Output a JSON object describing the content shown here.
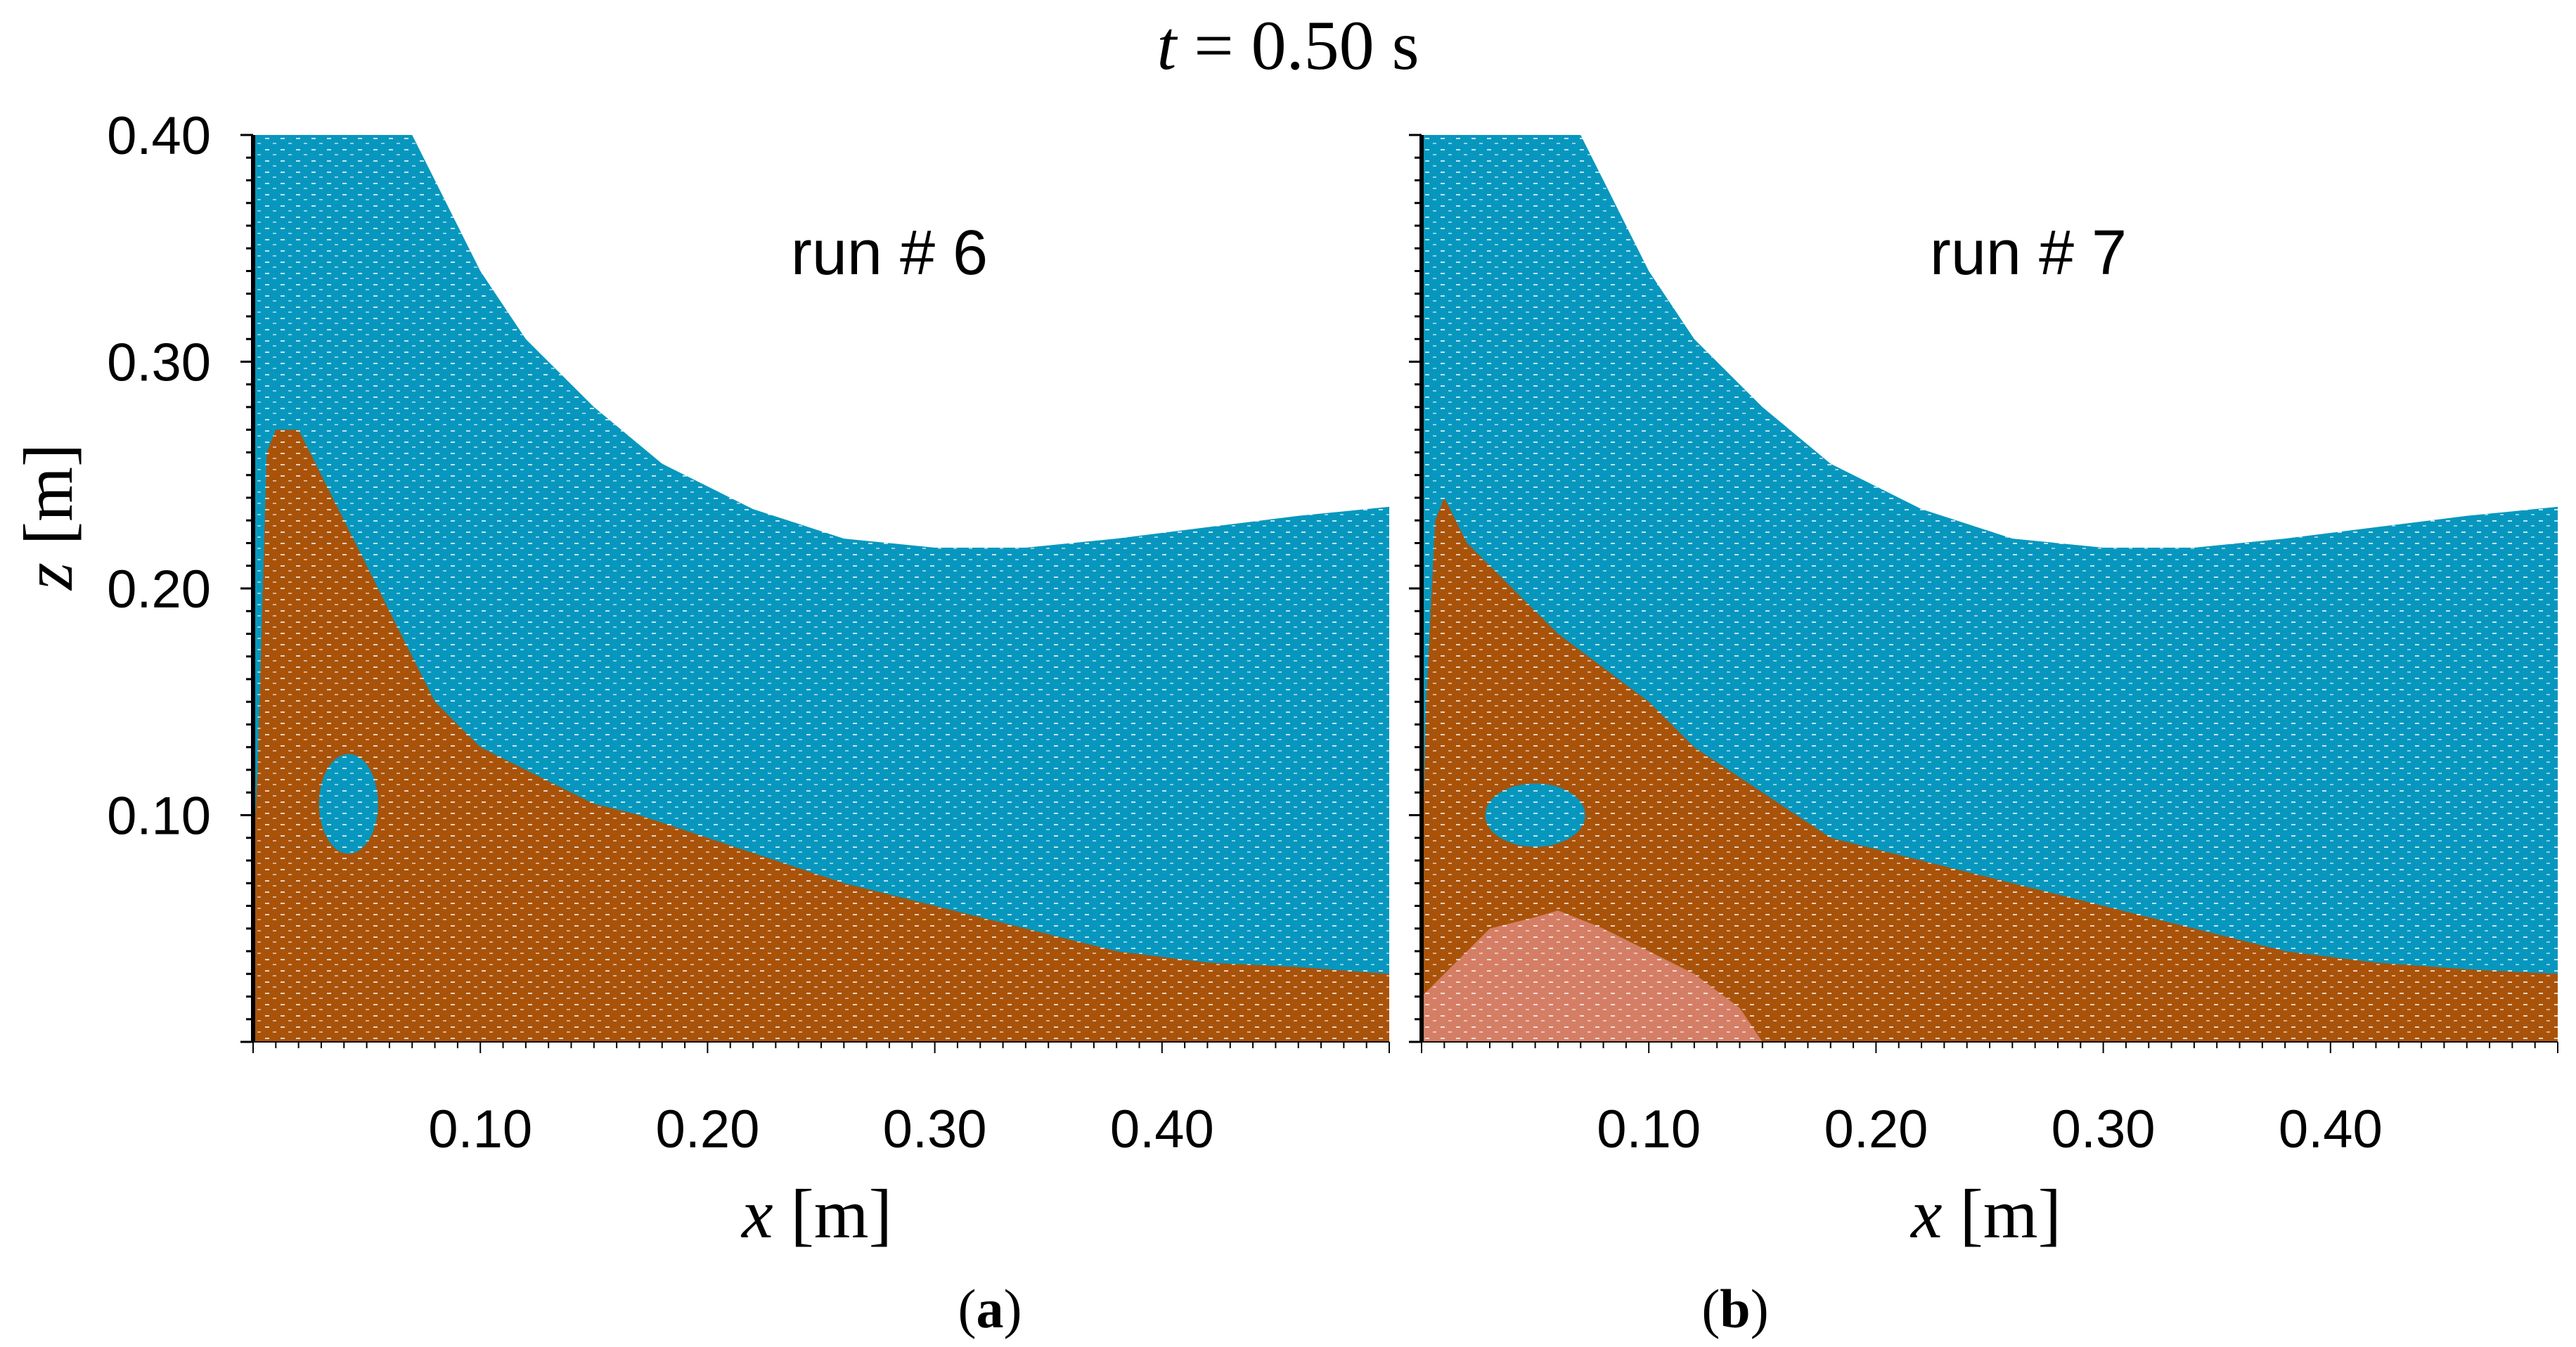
{
  "figure": {
    "title": "t = 0.50 s",
    "title_var": "t",
    "title_rest": " = 0.50 s"
  },
  "colors": {
    "water": "#0797BE",
    "sediment": "#A9530A",
    "light_sediment": "#D57E66",
    "background": "#FFFFFF",
    "axis": "#000000"
  },
  "chart_data": [
    {
      "type": "area",
      "panel_label": "(a)",
      "panel_letter": "a",
      "annotation": "run # 6",
      "xlabel": "x [m]",
      "xlabel_var": "x",
      "xlabel_unit": " [m]",
      "ylabel": "z [m]",
      "ylabel_var": "z",
      "ylabel_unit": " [m]",
      "xlim": [
        0,
        0.5
      ],
      "ylim": [
        0,
        0.4
      ],
      "xticks": [
        0.1,
        0.2,
        0.3,
        0.4
      ],
      "xtick_labels": [
        "0.10",
        "0.20",
        "0.30",
        "0.40"
      ],
      "yticks": [
        0.1,
        0.2,
        0.3,
        0.4
      ],
      "ytick_labels": [
        "0.10",
        "0.20",
        "0.30",
        "0.40"
      ],
      "series": [
        {
          "name": "water",
          "color": "#0797BE",
          "x": [
            0,
            0.07,
            0.08,
            0.1,
            0.12,
            0.15,
            0.18,
            0.22,
            0.26,
            0.3,
            0.34,
            0.38,
            0.42,
            0.46,
            0.5
          ],
          "z": [
            0.4,
            0.4,
            0.38,
            0.34,
            0.31,
            0.28,
            0.255,
            0.235,
            0.222,
            0.218,
            0.218,
            0.222,
            0.227,
            0.232,
            0.236
          ]
        },
        {
          "name": "sediment",
          "color": "#A9530A",
          "x": [
            0,
            0.002,
            0.006,
            0.01,
            0.02,
            0.03,
            0.04,
            0.05,
            0.06,
            0.07,
            0.08,
            0.1,
            0.12,
            0.15,
            0.17,
            0.2,
            0.23,
            0.26,
            0.3,
            0.34,
            0.38,
            0.42,
            0.46,
            0.5
          ],
          "z": [
            0.08,
            0.12,
            0.26,
            0.27,
            0.27,
            0.25,
            0.23,
            0.21,
            0.19,
            0.17,
            0.15,
            0.13,
            0.12,
            0.105,
            0.1,
            0.09,
            0.08,
            0.07,
            0.06,
            0.05,
            0.04,
            0.035,
            0.033,
            0.03
          ]
        }
      ],
      "void": {
        "cx": 0.042,
        "cz": 0.105,
        "rx": 0.013,
        "rz": 0.022
      }
    },
    {
      "type": "area",
      "panel_label": "(b)",
      "panel_letter": "b",
      "annotation": "run # 7",
      "xlabel": "x [m]",
      "xlabel_var": "x",
      "xlabel_unit": " [m]",
      "xlim": [
        0,
        0.5
      ],
      "ylim": [
        0,
        0.4
      ],
      "xticks": [
        0.1,
        0.2,
        0.3,
        0.4
      ],
      "xtick_labels": [
        "0.10",
        "0.20",
        "0.30",
        "0.40"
      ],
      "series": [
        {
          "name": "water",
          "color": "#0797BE",
          "x": [
            0,
            0.07,
            0.08,
            0.1,
            0.12,
            0.15,
            0.18,
            0.22,
            0.26,
            0.3,
            0.34,
            0.38,
            0.42,
            0.46,
            0.5
          ],
          "z": [
            0.4,
            0.4,
            0.38,
            0.34,
            0.31,
            0.28,
            0.255,
            0.235,
            0.222,
            0.218,
            0.218,
            0.222,
            0.227,
            0.232,
            0.236
          ]
        },
        {
          "name": "sediment",
          "color": "#A9530A",
          "x": [
            0,
            0.002,
            0.006,
            0.01,
            0.02,
            0.04,
            0.06,
            0.08,
            0.1,
            0.12,
            0.15,
            0.18,
            0.22,
            0.26,
            0.3,
            0.34,
            0.38,
            0.42,
            0.46,
            0.5
          ],
          "z": [
            0.07,
            0.15,
            0.23,
            0.24,
            0.22,
            0.2,
            0.18,
            0.165,
            0.15,
            0.13,
            0.11,
            0.09,
            0.08,
            0.07,
            0.06,
            0.05,
            0.04,
            0.035,
            0.032,
            0.03
          ]
        },
        {
          "name": "light sediment",
          "color": "#D57E66",
          "x": [
            0,
            0.01,
            0.03,
            0.05,
            0.06,
            0.08,
            0.1,
            0.12,
            0.14,
            0.15
          ],
          "z": [
            0.02,
            0.03,
            0.05,
            0.055,
            0.058,
            0.05,
            0.04,
            0.03,
            0.015,
            0
          ]
        }
      ],
      "void": {
        "cx": 0.05,
        "cz": 0.1,
        "rx": 0.022,
        "rz": 0.014
      }
    }
  ]
}
